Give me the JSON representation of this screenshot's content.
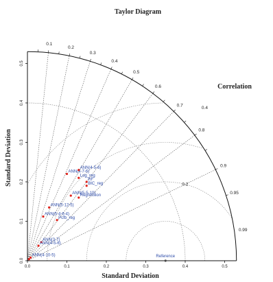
{
  "chart_data": {
    "type": "scatter",
    "subtype": "taylor-diagram",
    "title": "Taylor Diagram",
    "xlabel": "Standard Deviation",
    "ylabel": "Standard Deviation",
    "corr_title": "Correlation",
    "sd_max": 0.53,
    "axis_ticks": [
      "0.0",
      "0.1",
      "0.2",
      "0.3",
      "0.4",
      "0.5"
    ],
    "axis_tick_values": [
      0,
      0.1,
      0.2,
      0.3,
      0.4,
      0.5
    ],
    "correlation_ticks": [
      {
        "value": 0.1,
        "label": "0.1"
      },
      {
        "value": 0.2,
        "label": "0.2"
      },
      {
        "value": 0.3,
        "label": "0.3"
      },
      {
        "value": 0.4,
        "label": "0.4"
      },
      {
        "value": 0.5,
        "label": "0.5"
      },
      {
        "value": 0.6,
        "label": "0.6"
      },
      {
        "value": 0.7,
        "label": "0.7"
      },
      {
        "value": 0.8,
        "label": "0.8"
      },
      {
        "value": 0.9,
        "label": "0.9"
      },
      {
        "value": 0.95,
        "label": "0.95"
      },
      {
        "value": 0.99,
        "label": "0.99"
      }
    ],
    "radial_lines": [
      0.1,
      0.2,
      0.3,
      0.4,
      0.5,
      0.6,
      0.7,
      0.8,
      0.9
    ],
    "reference_sd": 0.35,
    "reference_label": "Reference",
    "rms_arcs": [
      {
        "radius": 0.1,
        "label": ""
      },
      {
        "radius": 0.2,
        "label": "0.2"
      },
      {
        "radius": 0.3,
        "label": ""
      },
      {
        "radius": 0.4,
        "label": "0.4"
      }
    ],
    "sd_arcs": [
      0.4
    ],
    "marker_color": "#e0231c",
    "label_color": "#2b4aa8",
    "points": [
      {
        "label": "ANN(4-7-6)",
        "x": 0.1,
        "y": 0.22
      },
      {
        "label": "ANN(4-5-6)",
        "x": 0.13,
        "y": 0.23
      },
      {
        "label": "Log_reg",
        "x": 0.13,
        "y": 0.21
      },
      {
        "label": "RF",
        "x": 0.15,
        "y": 0.2
      },
      {
        "label": "BIC_reg",
        "x": 0.15,
        "y": 0.19
      },
      {
        "label": "ANN(5-5-10)",
        "x": 0.11,
        "y": 0.165
      },
      {
        "label": "Regression",
        "x": 0.13,
        "y": 0.16
      },
      {
        "label": "ANN(5-12-5)",
        "x": 0.055,
        "y": 0.135
      },
      {
        "label": "ANN(5-4-6-4)",
        "x": 0.04,
        "y": 0.112
      },
      {
        "label": "Pcfb_reg",
        "x": 0.075,
        "y": 0.103
      },
      {
        "label": "ANN(3-7)",
        "x": 0.035,
        "y": 0.047
      },
      {
        "label": "ANN(4-5-6)",
        "x": 0.028,
        "y": 0.038
      },
      {
        "label": "ANN(4-10-5)",
        "x": 0.008,
        "y": 0.008
      },
      {
        "label": "",
        "x": 0.004,
        "y": 0.004
      }
    ]
  }
}
